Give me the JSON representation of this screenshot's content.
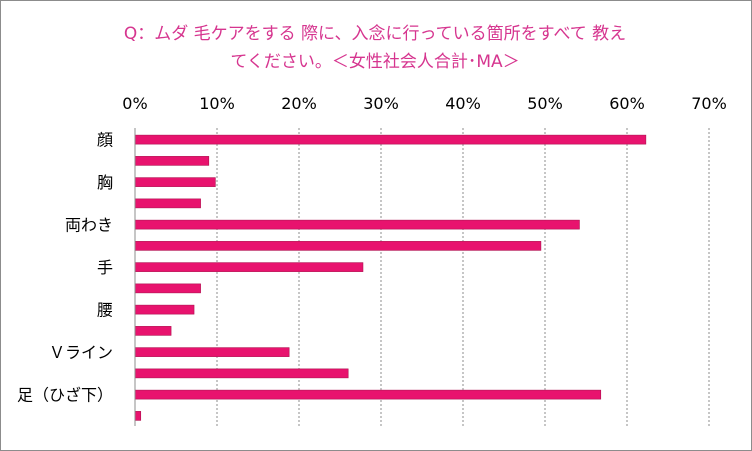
{
  "chart_data": {
    "type": "bar",
    "orientation": "horizontal",
    "title": "Q：ムダ毛ケアをする際に、入念に行っている箇所をすべて教えてください。＜女性社会人合計･MA＞",
    "title_lines": [
      "Q：ムダ 毛ケアをする 際に、入念に行っている箇所をすべて 教え",
      "てください。＜女性社会人合計･MA＞"
    ],
    "xlim": [
      0,
      70
    ],
    "x_ticks": [
      "0%",
      "10%",
      "20%",
      "30%",
      "40%",
      "50%",
      "60%",
      "70%"
    ],
    "x_tick_values": [
      0,
      10,
      20,
      30,
      40,
      50,
      60,
      70
    ],
    "axis_position": "top",
    "grid": true,
    "legend": "none",
    "bar_color": "#e8136e",
    "categories": [
      "顔",
      "",
      "胸",
      "",
      "両わき",
      "",
      "手",
      "",
      "腰",
      "",
      "Ｖライン",
      "",
      "足（ひざ下）",
      ""
    ],
    "values": [
      62.3,
      9.0,
      9.8,
      8.0,
      54.2,
      49.5,
      27.8,
      8.0,
      7.2,
      4.4,
      18.8,
      26.0,
      56.8,
      0.7
    ]
  }
}
